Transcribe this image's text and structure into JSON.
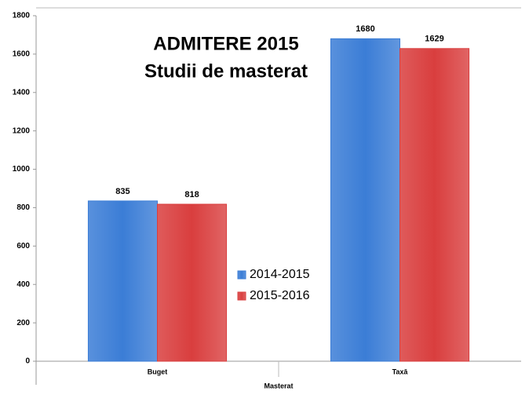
{
  "chart_data": {
    "type": "bar",
    "title": "ADMITERE 2015",
    "subtitle": "Studii de masterat",
    "x_label": "Masterat",
    "categories": [
      "Buget",
      "Taxă"
    ],
    "series": [
      {
        "name": "2014-2015",
        "color": "#3b7dd6",
        "values": [
          835,
          1680
        ]
      },
      {
        "name": "2015-2016",
        "color": "#d93e3e",
        "values": [
          818,
          1629
        ]
      }
    ],
    "ylim": [
      0,
      1800
    ],
    "yticks": [
      0,
      200,
      400,
      600,
      800,
      1000,
      1200,
      1400,
      1600,
      1800
    ],
    "grid": false
  }
}
